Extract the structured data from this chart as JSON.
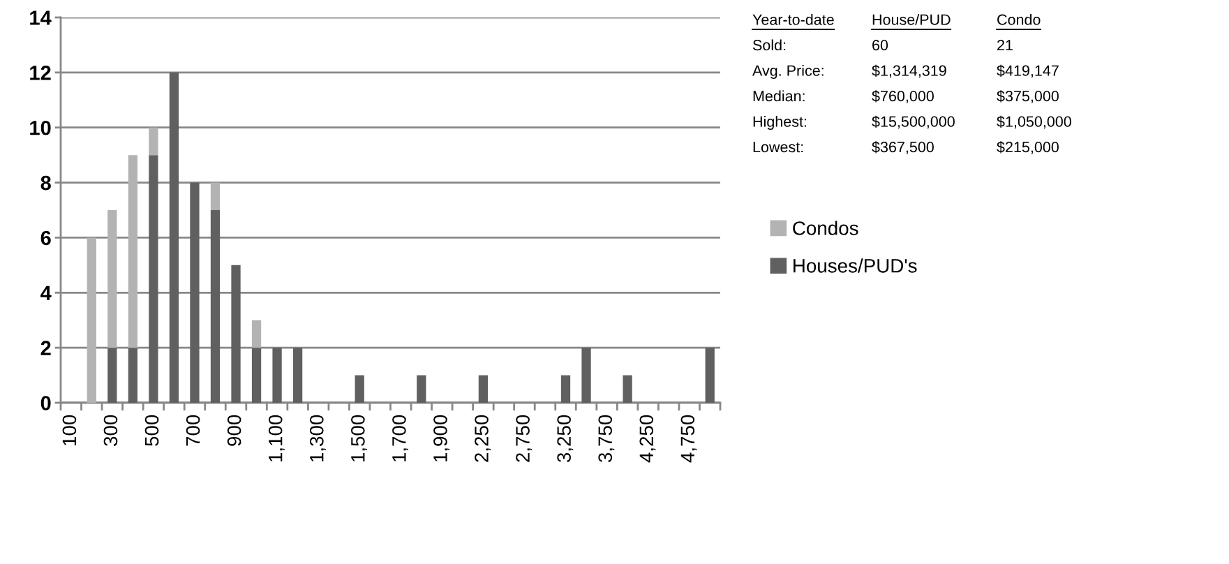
{
  "chart_data": {
    "type": "bar",
    "stacked": true,
    "categories": [
      "100",
      null,
      "300",
      null,
      "500",
      null,
      "700",
      null,
      "900",
      null,
      "1,100",
      null,
      "1,300",
      null,
      "1,500",
      null,
      "1,700",
      null,
      "1,900",
      null,
      "2,250",
      null,
      "2,750",
      null,
      "3,250",
      null,
      "3,750",
      null,
      "4,250",
      null,
      "4,750",
      null
    ],
    "series": [
      {
        "name": "Houses/PUD's",
        "color": "#606060",
        "values": [
          0,
          0,
          2,
          2,
          9,
          12,
          8,
          7,
          5,
          2,
          2,
          2,
          0,
          0,
          1,
          0,
          0,
          1,
          0,
          0,
          1,
          0,
          0,
          0,
          1,
          2,
          0,
          1,
          0,
          0,
          0,
          2
        ]
      },
      {
        "name": "Condos",
        "color": "#b3b3b3",
        "values": [
          0,
          6,
          5,
          7,
          1,
          0,
          0,
          1,
          0,
          1,
          0,
          0,
          0,
          0,
          0,
          0,
          0,
          0,
          0,
          0,
          0,
          0,
          0,
          0,
          0,
          0,
          0,
          0,
          0,
          0,
          0,
          0
        ]
      }
    ],
    "ylim": [
      0,
      14
    ],
    "yticks": [
      0,
      2,
      4,
      6,
      8,
      10,
      12,
      14
    ],
    "grid": "y",
    "legend": "right",
    "annotations": [
      "Year-to-date",
      "House/PUD",
      "Condo",
      "Sold:",
      "60",
      "21",
      "Avg. Price:",
      "$1,314,319",
      "$419,147",
      "Median:",
      "$760,000",
      "$375,000",
      "Highest:",
      "$15,500,000",
      "$1,050,000",
      "Lowest:",
      "$367,500",
      "$215,000"
    ]
  }
}
